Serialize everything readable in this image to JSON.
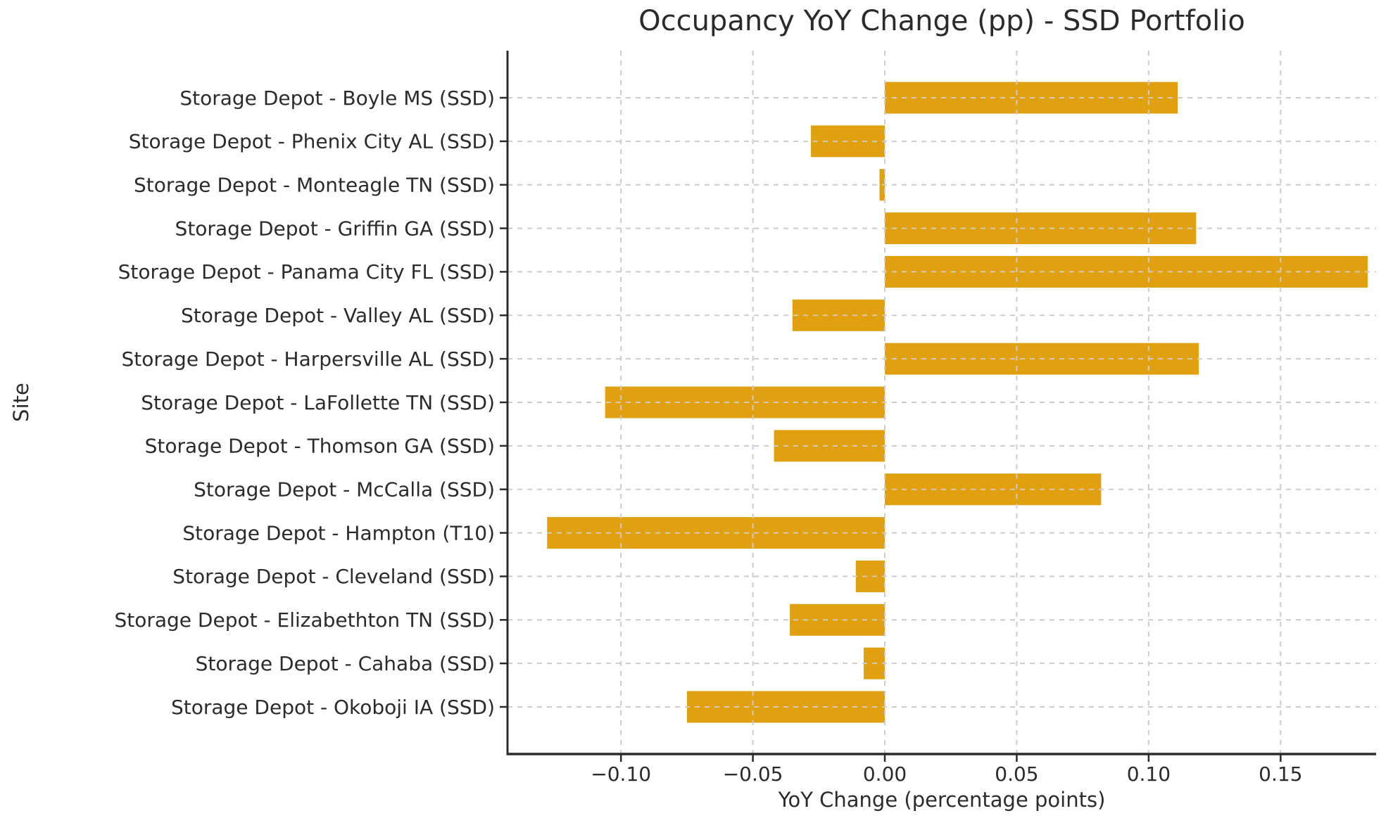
{
  "chart_data": {
    "type": "bar",
    "orientation": "horizontal",
    "title": "Occupancy YoY Change (pp) - SSD Portfolio",
    "xlabel": "YoY Change (percentage points)",
    "ylabel": "Site",
    "categories": [
      "Storage Depot - Boyle MS (SSD)",
      "Storage Depot - Phenix City AL (SSD)",
      "Storage Depot - Monteagle TN (SSD)",
      "Storage Depot - Griffin GA (SSD)",
      "Storage Depot - Panama City FL (SSD)",
      "Storage Depot - Valley AL (SSD)",
      "Storage Depot - Harpersville AL (SSD)",
      "Storage Depot - LaFollette TN (SSD)",
      "Storage Depot - Thomson GA (SSD)",
      "Storage Depot - McCalla (SSD)",
      "Storage Depot - Hampton (T10)",
      "Storage Depot - Cleveland (SSD)",
      "Storage Depot - Elizabethton TN (SSD)",
      "Storage Depot - Cahaba (SSD)",
      "Storage Depot - Okoboji IA (SSD)"
    ],
    "values": [
      0.111,
      -0.028,
      -0.002,
      0.118,
      0.183,
      -0.035,
      0.119,
      -0.106,
      -0.042,
      0.082,
      -0.128,
      -0.011,
      -0.036,
      -0.008,
      -0.075
    ],
    "xticks": [
      -0.1,
      -0.05,
      0.0,
      0.05,
      0.1,
      0.15
    ],
    "xtick_labels": [
      "−0.10",
      "−0.05",
      "0.00",
      "0.05",
      "0.10",
      "0.15"
    ],
    "xlim": [
      -0.143,
      0.1862
    ],
    "grid": true,
    "grid_style": "dashed",
    "legend_position": "none",
    "bar_color": "#E0A010",
    "grid_color": "#cccccc",
    "axis_color": "#2b2b2b",
    "text_color": "#2b2b2b",
    "background": "#ffffff"
  }
}
